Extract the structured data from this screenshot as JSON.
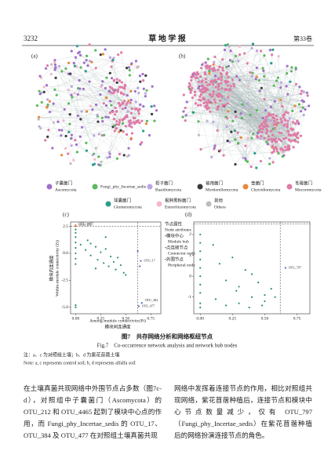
{
  "header": {
    "page": "3232",
    "journal": "草 地 学 报",
    "volume": "第33卷"
  },
  "figure": {
    "panel_labels": [
      "(a)",
      "(b)",
      "(c)",
      "(d)"
    ],
    "legend": [
      {
        "cn": "子囊菌门",
        "en": "Ascomycota",
        "color": "#a070c8"
      },
      {
        "cn": "",
        "en": "Fungi_phy_Incertae_sedis",
        "color": "#5cb85c"
      },
      {
        "cn": "担子菌门",
        "en": "Basidiomycota",
        "color": "#b9a6e0"
      },
      {
        "cn": "被孢菌门",
        "en": "Mortierellomycota",
        "color": "#3a3a3a"
      },
      {
        "cn": "壶菌门",
        "en": "Chytridiomycota",
        "color": "#e8893a"
      },
      {
        "cn": "毛霉菌门",
        "en": "Mucoromycota",
        "color": "#e07aa6"
      },
      {
        "cn": "球囊菌门",
        "en": "Glomeromycota",
        "color": "#2a9d8f"
      },
      {
        "cn": "根肿黑粉菌门",
        "en": "Entorrhizomycota",
        "color": "#f2b8c8"
      },
      {
        "cn": "其他",
        "en": "Others",
        "color": "#bdbdbd"
      }
    ],
    "node_attributes": {
      "title_cn": "节点属性",
      "title_en": "Node attributes",
      "items": [
        {
          "cn": "•模块中心",
          "en": "Module hub",
          "color": "#e07a3a"
        },
        {
          "cn": "•点连接节点",
          "en": "Connector node",
          "color": "#4a6fb5"
        },
        {
          "cn": "•外围节点",
          "en": "Peripheral node",
          "color": "#2e8b6e"
        }
      ]
    },
    "y_label_cn": "模块内连通度",
    "y_label_en": "Within-module connectivity (Zi)",
    "x_label_en": "Among-module connectivity(Pi)",
    "x_label_cn": "模块间连通度",
    "panel_c": {
      "xlim": [
        -0.05,
        0.85
      ],
      "ylim": [
        -5.6,
        2.9
      ],
      "xticks": [
        {
          "value": 0,
          "label": "0.00"
        },
        0.25,
        {
          "value": 0.5,
          "label": "0.50"
        },
        0.75
      ],
      "yticks": [
        2.5,
        {
          "value": 0,
          "label": "0.0"
        },
        -2.5,
        {
          "value": -5,
          "label": "-5.0"
        }
      ],
      "thresholds": {
        "zi": 2.5,
        "pi": 0.62
      },
      "x": [
        0,
        0,
        0,
        0,
        0,
        0,
        0,
        0,
        0,
        0,
        0.05,
        0.1,
        0.12,
        0.15,
        0.2,
        0.22,
        0.25,
        0.28,
        0.3,
        0.33,
        0.35,
        0.38,
        0.4,
        0.42,
        0.45,
        0.48,
        0.5,
        0.3,
        0.2,
        0.15,
        0.62,
        0.65,
        0.64,
        0.66,
        0.63,
        0,
        0
      ],
      "y": [
        2.6,
        2.5,
        2.2,
        1.9,
        1.5,
        1.0,
        0.5,
        0,
        -0.5,
        -1,
        0.8,
        0.3,
        1.2,
        -0.2,
        0.6,
        -0.6,
        0.1,
        -0.9,
        0.4,
        -1.2,
        -0.3,
        -0.8,
        -1.5,
        -0.4,
        -1.1,
        -1.8,
        -2.0,
        1.5,
        -1.4,
        0.9,
        0.2,
        -0.7,
        -1.2,
        -4.6,
        -4.9,
        -4.8,
        -5.0
      ],
      "annotations": [
        {
          "text": "OTU_212",
          "x": 0,
          "y": 2.6
        },
        {
          "text": "OTU_4465",
          "x": 0,
          "y": 2.5
        },
        {
          "text": "OTU_17",
          "x": 0.65,
          "y": -0.7
        },
        {
          "text": "OTU_384",
          "x": 0.66,
          "y": -4.6
        },
        {
          "text": "OTU_477",
          "x": 0.63,
          "y": -4.9
        }
      ]
    },
    "panel_d": {
      "xlim": [
        -0.05,
        0.85
      ],
      "ylim": [
        -1.8,
        2.6
      ],
      "xticks": [
        {
          "value": 0,
          "label": "0.00"
        },
        0.25,
        {
          "value": 0.5,
          "label": "0.50"
        },
        0.75
      ],
      "yticks": [
        2,
        1,
        0,
        -1
      ],
      "thresholds": {
        "zi": 2.5,
        "pi": 0.62
      },
      "x": [
        0,
        0,
        0,
        0,
        0,
        0,
        0,
        0,
        0.1,
        0.15,
        0.2,
        0.25,
        0.3,
        0.35,
        0.4,
        0.45,
        0.5,
        0.55,
        0.2,
        0.3,
        0.4,
        0.5,
        0.12,
        0.28,
        0.38,
        0.48,
        0.58,
        0.66,
        0,
        0
      ],
      "y": [
        2.0,
        1.6,
        1.2,
        0.8,
        0.4,
        0,
        -0.4,
        -0.8,
        1.5,
        0.6,
        -0.2,
        0.9,
        -0.5,
        0.3,
        -1.0,
        -0.3,
        -1.2,
        -0.6,
        -1.4,
        -1.3,
        0.1,
        -0.9,
        -1.1,
        -0.7,
        -1.5,
        -1.4,
        -1.0,
        0.4,
        -1.3,
        -1.5
      ],
      "annotations": [
        {
          "text": "OTU_797",
          "x": 0.66,
          "y": 0.4
        }
      ]
    },
    "caption_cn": "图7　共存网络分析和网络枢纽节点",
    "caption_en": "Fig.7　Co-occurrence network analysis and network hub nodes",
    "note_cn": "注：a、c 为对照组土壤；b、d 为紫花苜蓿土壤",
    "note_en": "Note: a, c represents control soil; b, d represents alfalfa soil"
  },
  "body": {
    "left": "在土壤真菌共现网络中外围节点占多数（图7c-d），对照组中子囊菌门（Ascomycota）的 OTU_212 和 OTU_4465 起到了模块中心点的作用，而 Fungi_phy_Incertae_sedis 的 OTU_17、OTU_384 及 OTU_477 在对照组土壤真菌共现",
    "right": "网络中发挥着连接节点的作用，相比对照组共现网络，紫花苜蓿种植后，连接节点和模块中心节点数量减少，仅有 OTU_797（Fungi_phy_Incertae_sedis）在紫花苜蓿种植后的网络扮演连接节点的角色。"
  }
}
